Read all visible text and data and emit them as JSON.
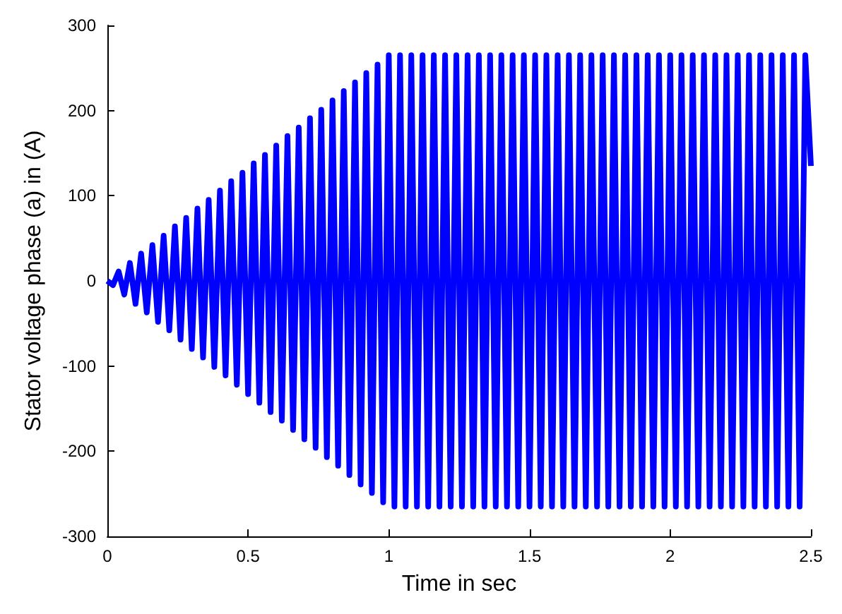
{
  "chart_data": {
    "type": "line",
    "xlabel": "Time in sec",
    "ylabel": "Stator voltage phase (a) in (A)",
    "xlim": [
      0,
      2.5
    ],
    "xticks": [
      0,
      0.5,
      1,
      1.5,
      2,
      2.5
    ],
    "ylim": [
      -300,
      300
    ],
    "yticks": [
      -300,
      -200,
      -100,
      0,
      100,
      200,
      300
    ],
    "grid": false,
    "marker": "none",
    "line_style": "solid",
    "x": [
      0,
      0.02,
      0.04,
      0.06,
      0.08,
      0.1,
      0.12,
      0.14,
      0.16,
      0.18,
      0.2,
      0.22,
      0.24,
      0.26,
      0.28,
      0.3,
      0.32,
      0.34,
      0.36,
      0.38,
      0.4,
      0.42,
      0.44,
      0.46,
      0.48,
      0.5,
      0.52,
      0.54,
      0.56,
      0.58,
      0.6,
      0.62,
      0.64,
      0.66,
      0.68,
      0.7,
      0.72,
      0.74,
      0.76,
      0.78,
      0.8,
      0.82,
      0.84,
      0.86,
      0.88,
      0.9,
      0.92,
      0.94,
      0.96,
      0.98,
      1,
      1.02,
      1.04,
      1.06,
      1.08,
      1.1,
      1.12,
      1.14,
      1.16,
      1.18,
      1.2,
      1.22,
      1.24,
      1.26,
      1.28,
      1.3,
      1.32,
      1.34,
      1.36,
      1.38,
      1.4,
      1.42,
      1.44,
      1.46,
      1.48,
      1.5,
      1.52,
      1.54,
      1.56,
      1.58,
      1.6,
      1.62,
      1.64,
      1.66,
      1.68,
      1.7,
      1.72,
      1.74,
      1.76,
      1.78,
      1.8,
      1.82,
      1.84,
      1.86,
      1.88,
      1.9,
      1.92,
      1.94,
      1.96,
      1.98,
      2,
      2.02,
      2.04,
      2.06,
      2.08,
      2.1,
      2.12,
      2.14,
      2.16,
      2.18,
      2.2,
      2.22,
      2.24,
      2.26,
      2.28,
      2.3,
      2.32,
      2.34,
      2.36,
      2.38,
      2.4,
      2.42,
      2.44,
      2.46,
      2.48,
      2.5
    ],
    "series": [
      {
        "color": "#0000ff",
        "values": [
          0,
          -5,
          11,
          -16,
          21,
          -27,
          32,
          -37,
          42,
          -48,
          53,
          -58,
          64,
          -69,
          74,
          -80,
          85,
          -90,
          95,
          -101,
          106,
          -111,
          117,
          -122,
          127,
          -133,
          138,
          -143,
          148,
          -154,
          159,
          -164,
          170,
          -175,
          180,
          -186,
          191,
          -196,
          201,
          -207,
          212,
          -217,
          223,
          -228,
          233,
          -239,
          244,
          -249,
          254,
          -260,
          265,
          -265,
          265,
          -265,
          265,
          -265,
          265,
          -265,
          265,
          -265,
          265,
          -265,
          265,
          -265,
          265,
          -265,
          265,
          -265,
          265,
          -265,
          265,
          -265,
          265,
          -265,
          265,
          -265,
          265,
          -265,
          265,
          -265,
          265,
          -265,
          265,
          -265,
          265,
          -265,
          265,
          -265,
          265,
          -265,
          265,
          -265,
          265,
          -265,
          265,
          -265,
          265,
          -265,
          265,
          -265,
          265,
          -265,
          265,
          -265,
          265,
          -265,
          265,
          -265,
          265,
          -265,
          265,
          -265,
          265,
          -265,
          265,
          -265,
          265,
          -265,
          265,
          -265,
          265,
          -265,
          265,
          -265,
          265,
          135
        ]
      }
    ]
  }
}
